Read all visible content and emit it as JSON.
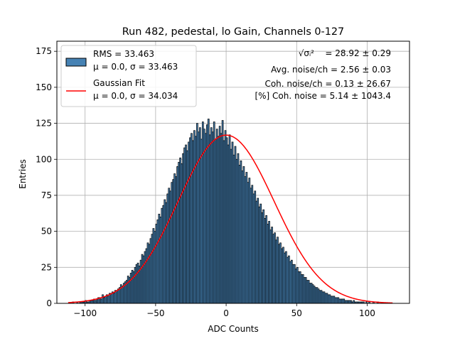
{
  "chart_data": {
    "type": "bar",
    "title": "Run 482, pedestal, lo Gain, Channels 0-127",
    "xlabel": "ADC Counts",
    "ylabel": "Entries",
    "xlim": [
      -120,
      130
    ],
    "ylim": [
      0,
      182
    ],
    "xticks": [
      -100,
      -50,
      0,
      50,
      100
    ],
    "yticks": [
      0,
      25,
      50,
      75,
      100,
      125,
      150,
      175
    ],
    "grid": true,
    "legend_position": "top-left",
    "bin_range": [
      -112,
      118
    ],
    "bin_width": 1,
    "series": [
      {
        "name": "RMS = 33.463",
        "name_line2": "μ = 0.0, σ = 33.463",
        "kind": "histogram",
        "color": "#4682b4",
        "edge_color": "#000000",
        "values": [
          0,
          0,
          0,
          1,
          0,
          0,
          1,
          0,
          1,
          1,
          1,
          1,
          2,
          1,
          1,
          2,
          2,
          2,
          3,
          2,
          3,
          4,
          4,
          3,
          6,
          4,
          5,
          6,
          5,
          7,
          7,
          8,
          7,
          9,
          9,
          10,
          11,
          13,
          12,
          14,
          15,
          16,
          19,
          18,
          21,
          23,
          22,
          25,
          27,
          28,
          26,
          30,
          34,
          33,
          36,
          38,
          42,
          41,
          45,
          48,
          52,
          50,
          55,
          58,
          62,
          60,
          66,
          68,
          72,
          70,
          76,
          80,
          78,
          84,
          86,
          90,
          88,
          95,
          98,
          101,
          97,
          104,
          108,
          110,
          106,
          112,
          115,
          118,
          113,
          120,
          116,
          125,
          119,
          122,
          114,
          126,
          121,
          118,
          124,
          128,
          117,
          122,
          119,
          126,
          114,
          121,
          116,
          123,
          118,
          127,
          113,
          120,
          115,
          110,
          117,
          107,
          112,
          103,
          109,
          100,
          104,
          96,
          99,
          92,
          95,
          88,
          91,
          84,
          87,
          80,
          82,
          76,
          78,
          71,
          73,
          67,
          69,
          63,
          65,
          59,
          61,
          55,
          57,
          51,
          53,
          48,
          49,
          44,
          46,
          41,
          42,
          38,
          39,
          35,
          36,
          32,
          33,
          29,
          30,
          27,
          27,
          24,
          25,
          22,
          22,
          20,
          20,
          18,
          18,
          16,
          16,
          14,
          14,
          13,
          12,
          11,
          11,
          10,
          9,
          9,
          8,
          8,
          7,
          7,
          6,
          6,
          5,
          5,
          5,
          4,
          4,
          4,
          3,
          3,
          3,
          3,
          2,
          2,
          2,
          2,
          2,
          1,
          2,
          1,
          1,
          1,
          1,
          1,
          1,
          1,
          0,
          1,
          0,
          1,
          0,
          0,
          1,
          0,
          0,
          1,
          0,
          0,
          0,
          0,
          0,
          0,
          0,
          0,
          0,
          0,
          0
        ]
      },
      {
        "name": "Gaussian Fit",
        "name_line2": "μ = 0.0, σ = 34.034",
        "kind": "line",
        "color": "#ff0000",
        "mu": 0.0,
        "sigma": 34.034,
        "amplitude": 116.8,
        "x_range": [
          -112,
          118
        ]
      }
    ],
    "annotations": {
      "line1_expr": "√σᵢ²",
      "line1_value": "= 28.92 ± 0.29",
      "line2": "Avg. noise/ch = 2.56 ± 0.03",
      "line3": "Coh. noise/ch = 0.13 ± 26.67",
      "line4": "[%] Coh. noise = 5.14 ± 1043.4"
    }
  }
}
